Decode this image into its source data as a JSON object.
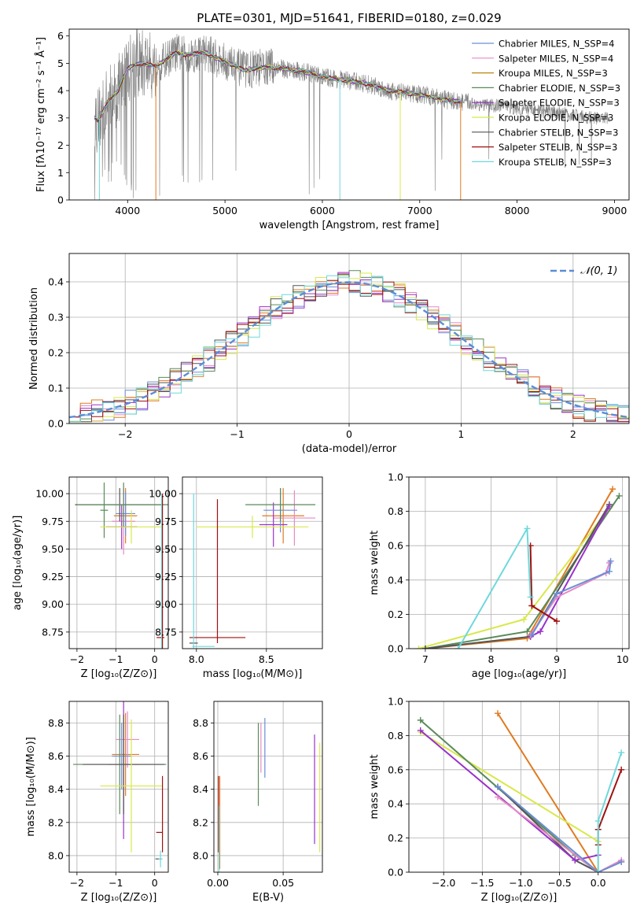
{
  "chart_data": [
    {
      "id": "spectrum",
      "type": "line",
      "title": "PLATE=0301, MJD=51641, FIBERID=0180, z=0.029",
      "xlabel": "wavelength [Angstrom, rest frame]",
      "ylabel": "Flux [fλ10⁻¹⁷ erg cm⁻² s⁻¹ Å⁻¹]",
      "xlim": [
        3400,
        9150
      ],
      "ylim": [
        0,
        6.25
      ],
      "xticks": [
        "4000",
        "5000",
        "6000",
        "7000",
        "8000",
        "9000"
      ],
      "yticks": [
        "0",
        "1",
        "2",
        "3",
        "4",
        "5",
        "6"
      ],
      "legend_position": "upper right",
      "observed_color": "#808080",
      "continuum": [
        [
          3650,
          3.05
        ],
        [
          3700,
          2.9
        ],
        [
          3800,
          3.6
        ],
        [
          3900,
          4.0
        ],
        [
          4000,
          4.8
        ],
        [
          4100,
          5.0
        ],
        [
          4200,
          4.95
        ],
        [
          4300,
          4.9
        ],
        [
          4400,
          5.15
        ],
        [
          4500,
          5.4
        ],
        [
          4600,
          5.3
        ],
        [
          4700,
          5.35
        ],
        [
          4800,
          5.4
        ],
        [
          4900,
          5.2
        ],
        [
          5000,
          5.05
        ],
        [
          5100,
          4.9
        ],
        [
          5200,
          4.75
        ],
        [
          5300,
          4.8
        ],
        [
          5400,
          4.85
        ],
        [
          5500,
          4.85
        ],
        [
          5600,
          4.8
        ],
        [
          5700,
          4.75
        ],
        [
          5800,
          4.7
        ],
        [
          5900,
          4.6
        ],
        [
          6000,
          4.5
        ],
        [
          6100,
          4.45
        ],
        [
          6200,
          4.4
        ],
        [
          6300,
          4.35
        ],
        [
          6400,
          4.3
        ],
        [
          6500,
          4.2
        ],
        [
          6600,
          4.1
        ],
        [
          6700,
          4.0
        ],
        [
          6800,
          3.95
        ],
        [
          6900,
          3.9
        ],
        [
          7000,
          3.85
        ],
        [
          7100,
          3.8
        ],
        [
          7200,
          3.7
        ],
        [
          7300,
          3.65
        ],
        [
          7400,
          3.6
        ],
        [
          7500,
          3.55
        ],
        [
          7600,
          3.5
        ],
        [
          7700,
          3.45
        ],
        [
          7800,
          3.45
        ],
        [
          7900,
          3.4
        ],
        [
          8000,
          3.35
        ],
        [
          8200,
          3.25
        ],
        [
          8400,
          3.2
        ],
        [
          8600,
          3.1
        ],
        [
          8800,
          3.0
        ],
        [
          9000,
          2.95
        ]
      ],
      "series": [
        {
          "name": "Chabrier MILES, N_SSP=4",
          "color": "#6b8fd6"
        },
        {
          "name": "Salpeter MILES, N_SSP=4",
          "color": "#e68ac3"
        },
        {
          "name": "Kroupa MILES, N_SSP=3",
          "color": "#b8860b"
        },
        {
          "name": "Chabrier ELODIE, N_SSP=3",
          "color": "#5a8a5a"
        },
        {
          "name": "Salpeter ELODIE, N_SSP=3",
          "color": "#9932cc"
        },
        {
          "name": "Kroupa ELODIE, N_SSP=3",
          "color": "#d8e84a"
        },
        {
          "name": "Chabrier STELIB, N_SSP=3",
          "color": "#555555"
        },
        {
          "name": "Salpeter STELIB, N_SSP=3",
          "color": "#a01010"
        },
        {
          "name": "Kroupa STELIB, N_SSP=3",
          "color": "#6fd8dc"
        }
      ]
    },
    {
      "id": "residuals",
      "type": "line",
      "xlabel": "(data-model)/error",
      "ylabel": "Normed distribution",
      "xlim": [
        -2.5,
        2.5
      ],
      "ylim": [
        0,
        0.48
      ],
      "xticks": [
        "−2",
        "−1",
        "0",
        "1",
        "2"
      ],
      "yticks": [
        "0.0",
        "0.1",
        "0.2",
        "0.3",
        "0.4"
      ],
      "grid": true,
      "legend": "𝒩(0, 1)",
      "legend_position": "upper right",
      "reference_color": "#5b8dd6",
      "histogram_colors": [
        "#6b8fd6",
        "#e68ac3",
        "#e07b20",
        "#5a8a5a",
        "#9932cc",
        "#d8e84a",
        "#555555",
        "#a01010",
        "#6fd8dc"
      ],
      "bin_width": 0.1
    },
    {
      "id": "age-vs-Z",
      "type": "scatter",
      "xlabel": "Z [log₁₀(Z/Z⊙)]",
      "ylabel": "age  [log₁₀(age/yr)]",
      "xlim": [
        -2.2,
        0.35
      ],
      "ylim": [
        8.6,
        10.15
      ],
      "xticks": [
        "−2",
        "−1",
        "0"
      ],
      "yticks": [
        "8.75",
        "9.00",
        "9.25",
        "9.50",
        "9.75",
        "10.00"
      ],
      "grid": true,
      "points": [
        {
          "x": -0.75,
          "y": 9.8,
          "xerr": 0.3,
          "yerr": 0.25,
          "color": "#e07b20"
        },
        {
          "x": -0.8,
          "y": 9.75,
          "xerr": 0.3,
          "yerr": 0.3,
          "color": "#e68ac3"
        },
        {
          "x": -0.85,
          "y": 9.7,
          "xerr": 0.4,
          "yerr": 0.2,
          "color": "#9932cc"
        },
        {
          "x": -0.75,
          "y": 9.82,
          "xerr": 0.25,
          "yerr": 0.2,
          "color": "#6b8fd6"
        },
        {
          "x": -0.9,
          "y": 9.9,
          "xerr": 1.15,
          "yerr": 0.15,
          "color": "#555555"
        },
        {
          "x": -0.8,
          "y": 9.9,
          "xerr": 1.2,
          "yerr": 0.2,
          "color": "#5a8a5a"
        },
        {
          "x": -1.3,
          "y": 9.85,
          "xerr": 0.1,
          "yerr": 0.25,
          "color": "#5a8a5a"
        },
        {
          "x": -0.6,
          "y": 9.7,
          "xerr": 0.8,
          "yerr": 0.15,
          "color": "#d8e84a"
        },
        {
          "x": 0.15,
          "y": 8.7,
          "xerr": 0.1,
          "yerr": 0.0,
          "color": "#a01010"
        },
        {
          "x": 0.18,
          "y": 9.3,
          "xerr": 0.0,
          "yerr": 0.7,
          "color": "#6fd8dc"
        },
        {
          "x": 0.2,
          "y": 9.3,
          "xerr": 0.0,
          "yerr": 0.7,
          "color": "#a01010"
        }
      ]
    },
    {
      "id": "age-vs-mass",
      "type": "scatter",
      "xlabel": "mass [log₁₀(M/M⊙)]",
      "ylabel": "",
      "xlim": [
        7.9,
        8.9
      ],
      "ylim": [
        8.6,
        10.15
      ],
      "xticks": [
        "8.0",
        "8.5"
      ],
      "yticks": [
        "8.75",
        "9.00",
        "9.25",
        "9.50",
        "9.75",
        "10.00"
      ],
      "grid": true,
      "points": [
        {
          "x": 8.62,
          "y": 9.8,
          "xerr": 0.15,
          "yerr": 0.25,
          "color": "#e07b20"
        },
        {
          "x": 8.7,
          "y": 9.78,
          "xerr": 0.15,
          "yerr": 0.25,
          "color": "#e68ac3"
        },
        {
          "x": 8.55,
          "y": 9.72,
          "xerr": 0.1,
          "yerr": 0.2,
          "color": "#9932cc"
        },
        {
          "x": 8.6,
          "y": 9.85,
          "xerr": 0.12,
          "yerr": 0.2,
          "color": "#6b8fd6"
        },
        {
          "x": 8.6,
          "y": 9.9,
          "xerr": 0.25,
          "yerr": 0.15,
          "color": "#5a8a5a"
        },
        {
          "x": 8.4,
          "y": 9.7,
          "xerr": 0.4,
          "yerr": 0.1,
          "color": "#d8e84a"
        },
        {
          "x": 8.15,
          "y": 8.7,
          "xerr": 0.2,
          "yerr": 0.0,
          "color": "#a01010"
        },
        {
          "x": 8.15,
          "y": 9.3,
          "xerr": 0.0,
          "yerr": 0.65,
          "color": "#a01010"
        },
        {
          "x": 7.98,
          "y": 8.65,
          "xerr": 0.03,
          "yerr": 0.0,
          "color": "#555555"
        },
        {
          "x": 7.98,
          "y": 9.3,
          "xerr": 0.0,
          "yerr": 0.7,
          "color": "#6fd8dc"
        },
        {
          "x": 8.05,
          "y": 8.62,
          "xerr": 0.08,
          "yerr": 0.0,
          "color": "#6fd8dc"
        }
      ]
    },
    {
      "id": "weight-vs-age",
      "type": "line",
      "xlabel": "age  [log₁₀(age/yr)]",
      "ylabel": "mass weight",
      "xlim": [
        6.75,
        10.1
      ],
      "ylim": [
        0,
        1.0
      ],
      "xticks": [
        "7",
        "8",
        "9",
        "10"
      ],
      "yticks": [
        "0.0",
        "0.2",
        "0.4",
        "0.6",
        "0.8",
        "1.0"
      ],
      "grid": true,
      "series": [
        {
          "color": "#e07b20",
          "points": [
            [
              7.0,
              0.0
            ],
            [
              8.55,
              0.06
            ],
            [
              9.85,
              0.93
            ]
          ]
        },
        {
          "color": "#d8e84a",
          "points": [
            [
              6.9,
              0.0
            ],
            [
              8.5,
              0.17
            ],
            [
              9.8,
              0.82
            ]
          ]
        },
        {
          "color": "#5a8a5a",
          "points": [
            [
              7.0,
              0.0
            ],
            [
              8.55,
              0.1
            ],
            [
              9.95,
              0.89
            ]
          ]
        },
        {
          "color": "#555555",
          "points": [
            [
              7.0,
              0.0
            ],
            [
              8.6,
              0.07
            ],
            [
              9.8,
              0.84
            ]
          ]
        },
        {
          "color": "#9932cc",
          "points": [
            [
              8.6,
              0.07
            ],
            [
              8.75,
              0.1
            ],
            [
              9.8,
              0.83
            ]
          ]
        },
        {
          "color": "#e68ac3",
          "points": [
            [
              8.6,
              0.08
            ],
            [
              9.0,
              0.3
            ],
            [
              9.75,
              0.44
            ],
            [
              9.8,
              0.5
            ]
          ]
        },
        {
          "color": "#6b8fd6",
          "points": [
            [
              8.62,
              0.08
            ],
            [
              9.0,
              0.32
            ],
            [
              9.8,
              0.45
            ],
            [
              9.82,
              0.51
            ]
          ]
        },
        {
          "color": "#a01010",
          "points": [
            [
              8.6,
              0.6
            ],
            [
              8.62,
              0.25
            ],
            [
              9.0,
              0.16
            ]
          ]
        },
        {
          "color": "#6fd8dc",
          "points": [
            [
              7.5,
              0.0
            ],
            [
              8.55,
              0.7
            ],
            [
              8.6,
              0.3
            ]
          ]
        }
      ]
    },
    {
      "id": "mass-vs-Z",
      "type": "scatter",
      "xlabel": "Z [log₁₀(Z/Z⊙)]",
      "ylabel": "mass [log₁₀(M/M⊙)]",
      "xlim": [
        -2.2,
        0.35
      ],
      "ylim": [
        7.9,
        8.93
      ],
      "xticks": [
        "−2",
        "−1",
        "0"
      ],
      "yticks": [
        "8.0",
        "8.2",
        "8.4",
        "8.6",
        "8.8"
      ],
      "grid": true,
      "points": [
        {
          "x": -0.75,
          "y": 8.61,
          "xerr": 0.35,
          "yerr": 0.25,
          "color": "#e07b20"
        },
        {
          "x": -0.7,
          "y": 8.7,
          "xerr": 0.3,
          "yerr": 0.17,
          "color": "#e68ac3"
        },
        {
          "x": -0.8,
          "y": 8.55,
          "xerr": 0.4,
          "yerr": 0.45,
          "color": "#9932cc"
        },
        {
          "x": -0.85,
          "y": 8.6,
          "xerr": 0.25,
          "yerr": 0.2,
          "color": "#6b8fd6"
        },
        {
          "x": -0.9,
          "y": 8.55,
          "xerr": 1.2,
          "yerr": 0.3,
          "color": "#5a8a5a"
        },
        {
          "x": -0.8,
          "y": 8.55,
          "xerr": 1.05,
          "yerr": 0.3,
          "color": "#555555"
        },
        {
          "x": -0.6,
          "y": 8.42,
          "xerr": 0.8,
          "yerr": 0.4,
          "color": "#d8e84a"
        },
        {
          "x": 0.2,
          "y": 8.25,
          "xerr": 0.0,
          "yerr": 0.23,
          "color": "#a01010"
        },
        {
          "x": 0.12,
          "y": 8.14,
          "xerr": 0.08,
          "yerr": 0.0,
          "color": "#a01010"
        },
        {
          "x": 0.1,
          "y": 7.98,
          "xerr": 0.08,
          "yerr": 0.0,
          "color": "#555555"
        },
        {
          "x": 0.15,
          "y": 7.98,
          "xerr": 0.05,
          "yerr": 0.05,
          "color": "#6fd8dc"
        }
      ]
    },
    {
      "id": "mass-vs-EBV",
      "type": "scatter",
      "xlabel": "E(B-V)",
      "ylabel": "",
      "xlim": [
        -0.003,
        0.08
      ],
      "ylim": [
        7.9,
        8.93
      ],
      "xticks": [
        "0.00",
        "0.05"
      ],
      "yticks": [
        "8.0",
        "8.2",
        "8.4",
        "8.6",
        "8.8"
      ],
      "grid": true,
      "points": [
        {
          "x": 0.0015,
          "y": 8.2,
          "yerr": 0.28,
          "color": "#e07b20"
        },
        {
          "x": 0.0005,
          "y": 8.25,
          "yerr": 0.23,
          "color": "#a01010"
        },
        {
          "x": 0.001,
          "y": 8.1,
          "yerr": 0.2,
          "color": "#6fd8dc"
        },
        {
          "x": 0.031,
          "y": 8.55,
          "yerr": 0.25,
          "color": "#5a8a5a"
        },
        {
          "x": 0.033,
          "y": 8.65,
          "yerr": 0.15,
          "color": "#e68ac3"
        },
        {
          "x": 0.036,
          "y": 8.65,
          "yerr": 0.18,
          "color": "#6b8fd6"
        },
        {
          "x": 0.074,
          "y": 8.4,
          "yerr": 0.33,
          "color": "#9932cc"
        },
        {
          "x": 0.078,
          "y": 8.35,
          "yerr": 0.33,
          "color": "#d8e84a"
        }
      ]
    },
    {
      "id": "weight-vs-Z",
      "type": "line",
      "xlabel": "Z [log₁₀(Z/Z⊙)]",
      "ylabel": "mass weight",
      "xlim": [
        -2.45,
        0.4
      ],
      "ylim": [
        0,
        1.0
      ],
      "xticks": [
        "−2.0",
        "−1.5",
        "−1.0",
        "−0.5",
        "0.0"
      ],
      "yticks": [
        "0.0",
        "0.2",
        "0.4",
        "0.6",
        "0.8",
        "1.0"
      ],
      "grid": true,
      "series": [
        {
          "color": "#e07b20",
          "points": [
            [
              -1.3,
              0.93
            ],
            [
              0.0,
              0.0
            ],
            [
              0.3,
              0.06
            ]
          ]
        },
        {
          "color": "#d8e84a",
          "points": [
            [
              -2.3,
              0.82
            ],
            [
              0.0,
              0.18
            ],
            [
              0.0,
              0.0
            ]
          ]
        },
        {
          "color": "#5a8a5a",
          "points": [
            [
              -2.3,
              0.89
            ],
            [
              -0.3,
              0.1
            ],
            [
              0.0,
              0.0
            ]
          ]
        },
        {
          "color": "#555555",
          "points": [
            [
              -1.3,
              0.5
            ],
            [
              -0.3,
              0.07
            ],
            [
              0.0,
              0.0
            ]
          ]
        },
        {
          "color": "#9932cc",
          "points": [
            [
              -2.3,
              0.83
            ],
            [
              -0.3,
              0.07
            ],
            [
              0.0,
              0.1
            ]
          ]
        },
        {
          "color": "#e68ac3",
          "points": [
            [
              -1.3,
              0.44
            ],
            [
              0.0,
              0.0
            ],
            [
              0.3,
              0.07
            ]
          ]
        },
        {
          "color": "#6b8fd6",
          "points": [
            [
              -1.3,
              0.5
            ],
            [
              0.0,
              0.0
            ],
            [
              0.3,
              0.06
            ]
          ]
        },
        {
          "color": "#a01010",
          "points": [
            [
              0.0,
              0.16
            ],
            [
              0.0,
              0.25
            ],
            [
              0.3,
              0.6
            ]
          ]
        },
        {
          "color": "#6fd8dc",
          "points": [
            [
              0.0,
              0.0
            ],
            [
              0.0,
              0.3
            ],
            [
              0.3,
              0.7
            ]
          ]
        }
      ]
    }
  ]
}
